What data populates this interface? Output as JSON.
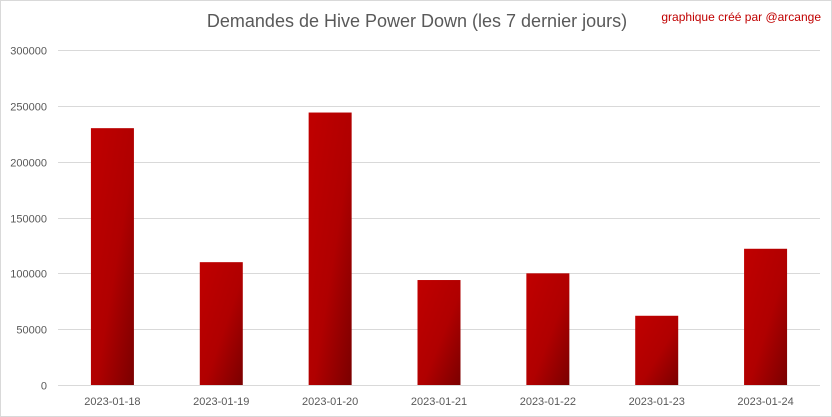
{
  "chart_data": {
    "type": "bar",
    "title": "Demandes de Hive Power Down (les 7 dernier jours)",
    "annotation": "graphique créé par @arcange",
    "categories": [
      "2023-01-18",
      "2023-01-19",
      "2023-01-20",
      "2023-01-21",
      "2023-01-22",
      "2023-01-23",
      "2023-01-24"
    ],
    "values": [
      230000,
      110000,
      244000,
      94000,
      100000,
      62000,
      122000
    ],
    "ylim": [
      0,
      300000
    ],
    "yticks": [
      0,
      50000,
      100000,
      150000,
      200000,
      250000,
      300000
    ],
    "grid": true,
    "legend": "none",
    "colors": {
      "bar_light": "#c00000",
      "bar_dark": "#7a0000",
      "grid": "#d9d9d9",
      "text": "#595959",
      "credit": "#c00000"
    }
  }
}
